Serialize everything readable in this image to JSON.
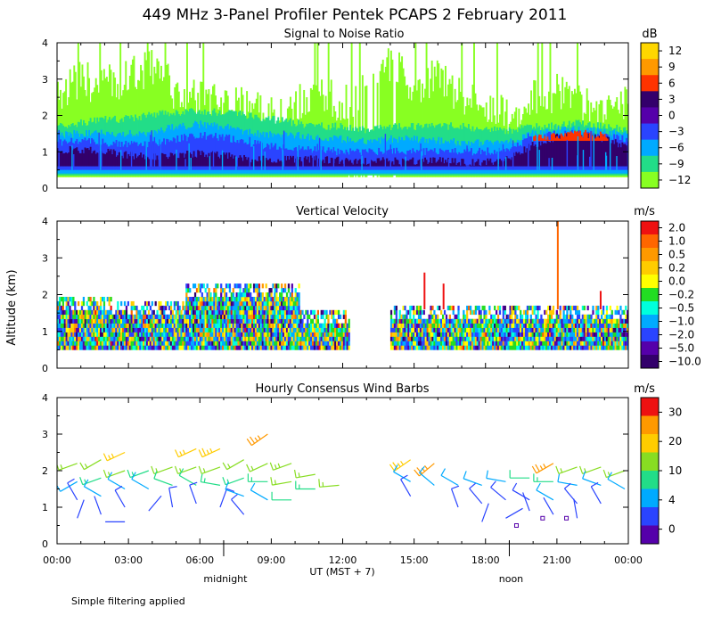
{
  "title": "449 MHz 3-Panel Profiler Pentek PCAPS  2 February 2011",
  "ylabel": "Altitude (km)",
  "xlabel": "UT  (MST + 7)",
  "x_ticks": [
    "00:00",
    "03:00",
    "06:00",
    "09:00",
    "12:00",
    "15:00",
    "18:00",
    "21:00",
    "00:00"
  ],
  "x_markers": [
    {
      "label": "midnight",
      "hour": 7
    },
    {
      "label": "noon",
      "hour": 19
    }
  ],
  "footnote": "Simple filtering applied",
  "colors": {
    "axis": "#000000",
    "background": "#ffffff"
  },
  "chart_data": [
    {
      "type": "heatmap",
      "title": "Signal to Noise Ratio",
      "units": "dB",
      "xlim": [
        0,
        24
      ],
      "ylim": [
        0,
        4
      ],
      "y_ticks": [
        "0",
        "1",
        "2",
        "3",
        "4"
      ],
      "colorbar_labels": [
        "12",
        "9",
        "6",
        "3",
        "0",
        "−3",
        "−6",
        "−9",
        "−12"
      ],
      "colorbar_colors": [
        "#ffd700",
        "#ff9900",
        "#ff3300",
        "#33006b",
        "#5500aa",
        "#2a44ff",
        "#00aaff",
        "#22dd88",
        "#88ff22"
      ],
      "layers": [
        {
          "color": "#88ff22",
          "y0": 0.3,
          "top": [
            2.6,
            2.9,
            2.8,
            3.0,
            3.3,
            2.6,
            2.4,
            2.2,
            2.2,
            2.0,
            2.2,
            2.5,
            2.3,
            2.6,
            3.4,
            2.8,
            3.0,
            2.4,
            2.2,
            2.0,
            2.4,
            2.6,
            2.3,
            2.0,
            2.4
          ]
        },
        {
          "color": "#22dd88",
          "y0": 0.35,
          "top": [
            1.7,
            1.8,
            1.9,
            1.9,
            2.0,
            2.1,
            2.1,
            2.1,
            2.0,
            1.9,
            1.8,
            1.7,
            1.7,
            1.6,
            1.7,
            1.7,
            1.7,
            1.7,
            1.6,
            1.6,
            1.7,
            1.7,
            1.8,
            1.7,
            1.6
          ]
        },
        {
          "color": "#00aaff",
          "y0": 0.4,
          "top": [
            1.45,
            1.5,
            1.5,
            1.5,
            1.5,
            1.7,
            1.75,
            1.7,
            1.55,
            1.45,
            1.45,
            1.4,
            1.35,
            1.3,
            1.35,
            1.35,
            1.3,
            1.25,
            1.25,
            1.3,
            1.5,
            1.6,
            1.6,
            1.55,
            1.45
          ]
        },
        {
          "color": "#2a44ff",
          "y0": 0.5,
          "top": [
            1.25,
            1.3,
            1.25,
            1.2,
            1.2,
            1.35,
            1.45,
            1.4,
            1.25,
            1.15,
            1.1,
            1.05,
            1.0,
            1.0,
            1.0,
            1.0,
            1.0,
            1.0,
            1.0,
            1.1,
            1.35,
            1.5,
            1.5,
            1.45,
            1.35
          ]
        },
        {
          "color": "#33006b",
          "y0": 0.6,
          "top": [
            1.05,
            1.05,
            1.0,
            0.9,
            0.85,
            0.9,
            0.95,
            0.9,
            0.8,
            0.8,
            0.8,
            0.8,
            0.75,
            0.75,
            0.75,
            0.75,
            0.75,
            0.7,
            0.7,
            0.8,
            1.2,
            1.4,
            1.45,
            1.35,
            1.1
          ]
        },
        {
          "color": "#ff3300",
          "y0": 1.3,
          "top": [
            0,
            0,
            0,
            0,
            0,
            0,
            0,
            0,
            0,
            0,
            0,
            0,
            0,
            0,
            0,
            0,
            0,
            0,
            0,
            0,
            1.35,
            1.45,
            1.5,
            1.45,
            0
          ]
        }
      ]
    },
    {
      "type": "heatmap",
      "title": "Vertical Velocity",
      "units": "m/s",
      "xlim": [
        0,
        24
      ],
      "ylim": [
        0,
        4
      ],
      "y_ticks": [
        "0",
        "1",
        "2",
        "3",
        "4"
      ],
      "colorbar_labels": [
        "2.0",
        "1.0",
        "0.5",
        "0.2",
        "0.0",
        "−0.2",
        "−0.5",
        "−1.0",
        "−2.0",
        "−5.0",
        "−10.0"
      ],
      "colorbar_colors": [
        "#ee1111",
        "#ff6600",
        "#ff9900",
        "#ffcc00",
        "#ffff00",
        "#22dd22",
        "#00ffdd",
        "#00aaff",
        "#2a44ff",
        "#5500aa",
        "#33006b"
      ],
      "segments": [
        {
          "h0": 0.0,
          "h1": 2.3,
          "top": 1.9
        },
        {
          "h0": 2.3,
          "h1": 5.4,
          "top": 1.8
        },
        {
          "h0": 5.4,
          "h1": 10.2,
          "top": 2.3
        },
        {
          "h0": 10.2,
          "h1": 12.3,
          "top": 1.5
        },
        {
          "h0": 14.0,
          "h1": 24.0,
          "top": 1.7
        }
      ],
      "spikes": [
        {
          "hour": 21.0,
          "top": 4.0
        },
        {
          "hour": 15.4,
          "top": 2.6
        },
        {
          "hour": 16.2,
          "top": 2.3
        },
        {
          "hour": 22.8,
          "top": 2.1
        }
      ]
    },
    {
      "type": "scatter",
      "title": "Hourly Consensus Wind Barbs",
      "units": "m/s",
      "xlim": [
        0,
        24
      ],
      "ylim": [
        0,
        4
      ],
      "y_ticks": [
        "0",
        "1",
        "2",
        "3",
        "4"
      ],
      "colorbar_labels": [
        "30",
        "20",
        "10",
        "4",
        "0"
      ],
      "colorbar_colors": [
        "#ee1111",
        "#ff9900",
        "#ffcc00",
        "#88dd22",
        "#22dd88",
        "#00aaff",
        "#2a44ff",
        "#5500aa"
      ],
      "barb_hours": [
        1,
        2,
        3,
        4,
        5,
        6,
        7,
        8,
        9,
        10,
        11,
        12,
        15,
        16,
        17,
        18,
        19,
        20,
        21,
        22,
        23,
        24
      ],
      "barbs": [
        {
          "hour": 1,
          "alt": 2.2,
          "speed": 10,
          "dir": 250
        },
        {
          "hour": 1,
          "alt": 1.7,
          "speed": 6,
          "dir": 240
        },
        {
          "hour": 1,
          "alt": 1.2,
          "speed": 3,
          "dir": 330
        },
        {
          "hour": 1,
          "alt": 0.7,
          "speed": 2,
          "dir": 20
        },
        {
          "hour": 2,
          "alt": 2.3,
          "speed": 12,
          "dir": 240
        },
        {
          "hour": 2,
          "alt": 1.8,
          "speed": 8,
          "dir": 250
        },
        {
          "hour": 2,
          "alt": 1.3,
          "speed": 4,
          "dir": 300
        },
        {
          "hour": 2,
          "alt": 0.8,
          "speed": 2,
          "dir": 340
        },
        {
          "hour": 3,
          "alt": 2.5,
          "speed": 16,
          "dir": 245
        },
        {
          "hour": 3,
          "alt": 2.0,
          "speed": 10,
          "dir": 250
        },
        {
          "hour": 3,
          "alt": 1.5,
          "speed": 6,
          "dir": 300
        },
        {
          "hour": 3,
          "alt": 1.0,
          "speed": 3,
          "dir": 330
        },
        {
          "hour": 3,
          "alt": 0.6,
          "speed": 2,
          "dir": 270
        },
        {
          "hour": 4,
          "alt": 2.0,
          "speed": 9,
          "dir": 250
        },
        {
          "hour": 4,
          "alt": 1.5,
          "speed": 5,
          "dir": 300
        },
        {
          "hour": 4,
          "alt": 0.9,
          "speed": 2,
          "dir": 40
        },
        {
          "hour": 5,
          "alt": 2.1,
          "speed": 10,
          "dir": 250
        },
        {
          "hour": 5,
          "alt": 1.6,
          "speed": 7,
          "dir": 290
        },
        {
          "hour": 5,
          "alt": 1.0,
          "speed": 3,
          "dir": 350
        },
        {
          "hour": 6,
          "alt": 2.6,
          "speed": 16,
          "dir": 245
        },
        {
          "hour": 6,
          "alt": 2.1,
          "speed": 12,
          "dir": 250
        },
        {
          "hour": 6,
          "alt": 1.6,
          "speed": 7,
          "dir": 300
        },
        {
          "hour": 6,
          "alt": 1.1,
          "speed": 3,
          "dir": 340
        },
        {
          "hour": 7,
          "alt": 2.6,
          "speed": 18,
          "dir": 245
        },
        {
          "hour": 7,
          "alt": 2.1,
          "speed": 12,
          "dir": 250
        },
        {
          "hour": 7,
          "alt": 1.6,
          "speed": 8,
          "dir": 280
        },
        {
          "hour": 7,
          "alt": 1.0,
          "speed": 3,
          "dir": 20
        },
        {
          "hour": 8,
          "alt": 2.3,
          "speed": 12,
          "dir": 240
        },
        {
          "hour": 8,
          "alt": 1.8,
          "speed": 8,
          "dir": 250
        },
        {
          "hour": 8,
          "alt": 1.3,
          "speed": 4,
          "dir": 290
        },
        {
          "hour": 8,
          "alt": 0.8,
          "speed": 3,
          "dir": 320
        },
        {
          "hour": 9,
          "alt": 3.0,
          "speed": 22,
          "dir": 235
        },
        {
          "hour": 9,
          "alt": 2.2,
          "speed": 12,
          "dir": 245
        },
        {
          "hour": 9,
          "alt": 1.7,
          "speed": 8,
          "dir": 270
        },
        {
          "hour": 9,
          "alt": 1.2,
          "speed": 5,
          "dir": 300
        },
        {
          "hour": 10,
          "alt": 2.2,
          "speed": 14,
          "dir": 250
        },
        {
          "hour": 10,
          "alt": 1.7,
          "speed": 10,
          "dir": 260
        },
        {
          "hour": 10,
          "alt": 1.2,
          "speed": 7,
          "dir": 270
        },
        {
          "hour": 11,
          "alt": 1.9,
          "speed": 12,
          "dir": 260
        },
        {
          "hour": 11,
          "alt": 1.5,
          "speed": 9,
          "dir": 270
        },
        {
          "hour": 12,
          "alt": 1.6,
          "speed": 10,
          "dir": 265
        },
        {
          "hour": 15,
          "alt": 2.3,
          "speed": 18,
          "dir": 235
        },
        {
          "hour": 15,
          "alt": 1.7,
          "speed": 6,
          "dir": 300
        },
        {
          "hour": 15,
          "alt": 1.3,
          "speed": 3,
          "dir": 330
        },
        {
          "hour": 16,
          "alt": 2.2,
          "speed": 20,
          "dir": 230
        },
        {
          "hour": 16,
          "alt": 1.6,
          "speed": 6,
          "dir": 310
        },
        {
          "hour": 17,
          "alt": 1.6,
          "speed": 4,
          "dir": 300
        },
        {
          "hour": 17,
          "alt": 1.0,
          "speed": 3,
          "dir": 340
        },
        {
          "hour": 18,
          "alt": 1.6,
          "speed": 4,
          "dir": 290
        },
        {
          "hour": 18,
          "alt": 1.1,
          "speed": 3,
          "dir": 320
        },
        {
          "hour": 18,
          "alt": 0.6,
          "speed": 2,
          "dir": 20
        },
        {
          "hour": 19,
          "alt": 1.7,
          "speed": 6,
          "dir": 280
        },
        {
          "hour": 19,
          "alt": 1.2,
          "speed": 3,
          "dir": 310
        },
        {
          "hour": 19,
          "alt": 0.7,
          "speed": 2,
          "dir": 60
        },
        {
          "hour": 20,
          "alt": 1.8,
          "speed": 7,
          "dir": 270
        },
        {
          "hour": 20,
          "alt": 1.2,
          "speed": 3,
          "dir": 300
        },
        {
          "hour": 20,
          "alt": 0.9,
          "speed": 2,
          "dir": 340
        },
        {
          "hour": 21,
          "alt": 2.2,
          "speed": 20,
          "dir": 240
        },
        {
          "hour": 21,
          "alt": 1.7,
          "speed": 8,
          "dir": 270
        },
        {
          "hour": 21,
          "alt": 1.2,
          "speed": 4,
          "dir": 300
        },
        {
          "hour": 21,
          "alt": 0.8,
          "speed": 2,
          "dir": 330
        },
        {
          "hour": 22,
          "alt": 2.1,
          "speed": 12,
          "dir": 250
        },
        {
          "hour": 22,
          "alt": 1.6,
          "speed": 6,
          "dir": 280
        },
        {
          "hour": 22,
          "alt": 1.1,
          "speed": 3,
          "dir": 320
        },
        {
          "hour": 22,
          "alt": 0.7,
          "speed": 2,
          "dir": 350
        },
        {
          "hour": 23,
          "alt": 2.1,
          "speed": 12,
          "dir": 250
        },
        {
          "hour": 23,
          "alt": 1.6,
          "speed": 6,
          "dir": 290
        },
        {
          "hour": 23,
          "alt": 1.1,
          "speed": 3,
          "dir": 330
        },
        {
          "hour": 24,
          "alt": 2.0,
          "speed": 11,
          "dir": 250
        },
        {
          "hour": 24,
          "alt": 1.5,
          "speed": 5,
          "dir": 300
        }
      ],
      "calm": [
        {
          "hour": 19.3,
          "alt": 0.5
        },
        {
          "hour": 20.4,
          "alt": 0.7
        },
        {
          "hour": 21.4,
          "alt": 0.7
        }
      ]
    }
  ]
}
